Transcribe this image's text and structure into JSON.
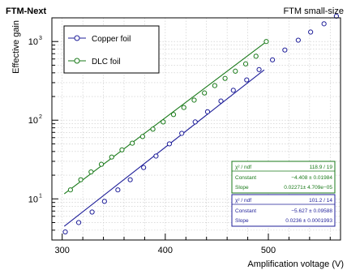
{
  "header": {
    "left_title": "FTM-Next",
    "right_title": "FTM small-size"
  },
  "chart_data": {
    "type": "scatter",
    "title": "",
    "xlabel": "Amplification voltage (V)",
    "ylabel": "Effective gain",
    "xlim": [
      290,
      570
    ],
    "ylim": [
      3,
      2000
    ],
    "yscale": "log",
    "grid": true,
    "legend_position": "top-left",
    "x_ticks": [
      300,
      400,
      500
    ],
    "y_ticks": [
      {
        "value": 10,
        "base": "10",
        "exp": "1"
      },
      {
        "value": 100,
        "base": "10",
        "exp": "2"
      },
      {
        "value": 1000,
        "base": "10",
        "exp": "3"
      }
    ],
    "series": [
      {
        "name": "Copper foil",
        "color": "#1f1f99",
        "marker": "open-circle",
        "x": [
          303,
          316,
          329,
          341,
          354,
          366,
          379,
          391,
          404,
          416,
          429,
          441,
          454,
          466,
          479,
          491,
          504,
          516,
          529,
          541,
          554,
          566
        ],
        "y": [
          3.8,
          5.0,
          6.8,
          9.3,
          13.0,
          17.5,
          25,
          35,
          50,
          68,
          95,
          128,
          175,
          240,
          325,
          440,
          585,
          780,
          1040,
          1320,
          1680,
          2100
        ]
      },
      {
        "name": "DLC foil",
        "color": "#1a7a1a",
        "marker": "open-circle",
        "x": [
          308,
          318,
          328,
          338,
          348,
          358,
          368,
          378,
          388,
          398,
          408,
          418,
          428,
          438,
          448,
          458,
          468,
          478,
          488,
          498
        ],
        "y": [
          13.0,
          17.5,
          22,
          27.5,
          34,
          42,
          51,
          62,
          77,
          95,
          118,
          145,
          180,
          222,
          275,
          340,
          420,
          520,
          650,
          1000
        ]
      }
    ],
    "fits": [
      {
        "series": "DLC foil",
        "color": "#1a7a1a",
        "x_range": [
          302,
          500
        ],
        "constant_value": -4.408,
        "slope_value": 0.02271,
        "chi2_label": "χ² / ndf",
        "chi2_value": "118.9 / 19",
        "constant_label": "Constant",
        "constant_text": "−4.408 ± 0.01984",
        "slope_label": "Slope",
        "slope_text": "0.02271± 4.709e−05"
      },
      {
        "series": "Copper foil",
        "color": "#1f1f99",
        "x_range": [
          302,
          496
        ],
        "constant_value": -5.627,
        "slope_value": 0.0236,
        "chi2_label": "χ² / ndf",
        "chi2_value": "101.2 / 14",
        "constant_label": "Constant",
        "constant_text": "−5.627 ± 0.09588",
        "slope_label": "Slope",
        "slope_text": "0.0236 ± 0.0001993"
      }
    ]
  }
}
